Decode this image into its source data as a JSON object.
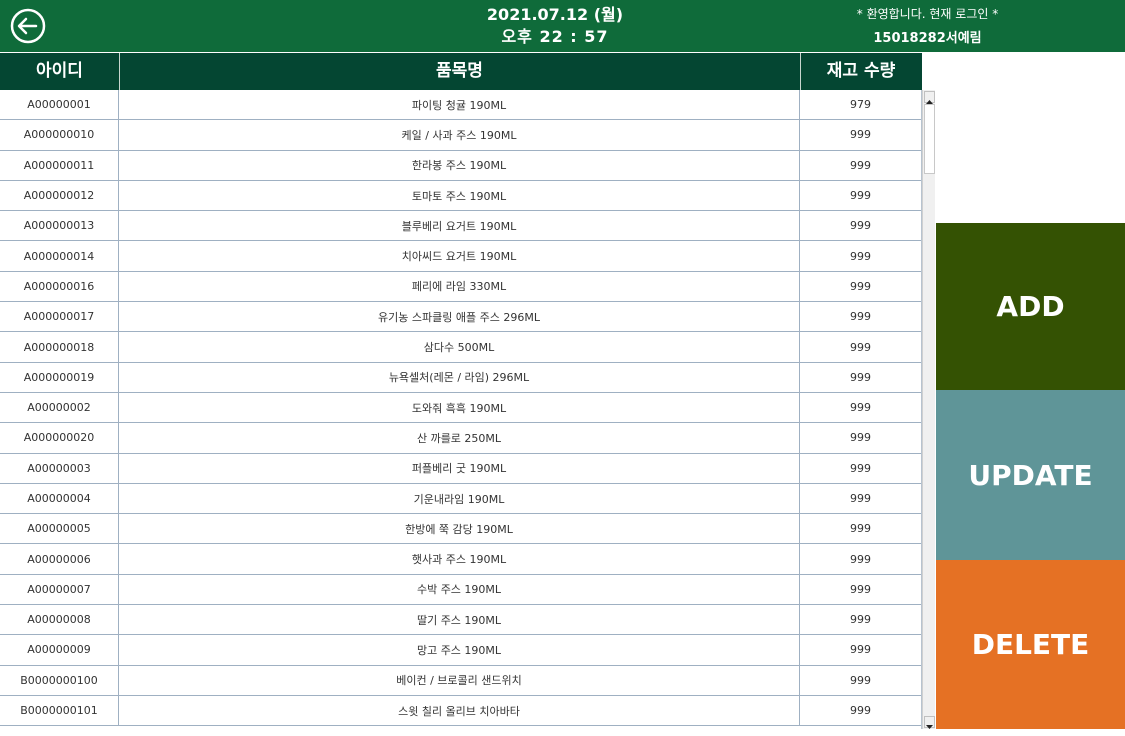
{
  "header": {
    "date": "2021.07.12 (월)",
    "time": "오후 22 : 57",
    "welcome": "* 환영합니다. 현재 로그인 *",
    "user": "15018282서예림",
    "back_icon": "arrow-left-circle-icon"
  },
  "table": {
    "columns": [
      "아이디",
      "품목명",
      "재고 수량"
    ],
    "rows": [
      {
        "id": "A00000001",
        "name": "파이팅 청귤 190ML",
        "qty": "979"
      },
      {
        "id": "A000000010",
        "name": "케일 / 사과 주스 190ML",
        "qty": "999"
      },
      {
        "id": "A000000011",
        "name": "한라봉 주스 190ML",
        "qty": "999"
      },
      {
        "id": "A000000012",
        "name": "토마토 주스 190ML",
        "qty": "999"
      },
      {
        "id": "A000000013",
        "name": "블루베리 요거트 190ML",
        "qty": "999"
      },
      {
        "id": "A000000014",
        "name": "치아씨드 요거트 190ML",
        "qty": "999"
      },
      {
        "id": "A000000016",
        "name": "페리에 라임 330ML",
        "qty": "999"
      },
      {
        "id": "A000000017",
        "name": "유기농 스파클링 애플 주스 296ML",
        "qty": "999"
      },
      {
        "id": "A000000018",
        "name": "삼다수 500ML",
        "qty": "999"
      },
      {
        "id": "A000000019",
        "name": "뉴욕셀처(레몬 / 라임) 296ML",
        "qty": "999"
      },
      {
        "id": "A00000002",
        "name": "도와줘 흑흑 190ML",
        "qty": "999"
      },
      {
        "id": "A000000020",
        "name": "산 까를로 250ML",
        "qty": "999"
      },
      {
        "id": "A00000003",
        "name": "퍼플베리 굿 190ML",
        "qty": "999"
      },
      {
        "id": "A00000004",
        "name": "기운내라임 190ML",
        "qty": "999"
      },
      {
        "id": "A00000005",
        "name": "한방에 쭉 감당 190ML",
        "qty": "999"
      },
      {
        "id": "A00000006",
        "name": "햇사과 주스 190ML",
        "qty": "999"
      },
      {
        "id": "A00000007",
        "name": "수박 주스 190ML",
        "qty": "999"
      },
      {
        "id": "A00000008",
        "name": "딸기 주스 190ML",
        "qty": "999"
      },
      {
        "id": "A00000009",
        "name": "망고 주스 190ML",
        "qty": "999"
      },
      {
        "id": "B0000000100",
        "name": "베이컨 / 브로콜리 샌드위치",
        "qty": "999"
      },
      {
        "id": "B0000000101",
        "name": "스윗 칠리 올리브 치아바타",
        "qty": "999"
      }
    ]
  },
  "buttons": {
    "add": "ADD",
    "update": "UPDATE",
    "delete": "DELETE"
  },
  "colors": {
    "header_bg": "#0f6b3a",
    "table_header_bg": "#044632",
    "add_bg": "#345203",
    "update_bg": "#5f9598",
    "delete_bg": "#e57124"
  }
}
